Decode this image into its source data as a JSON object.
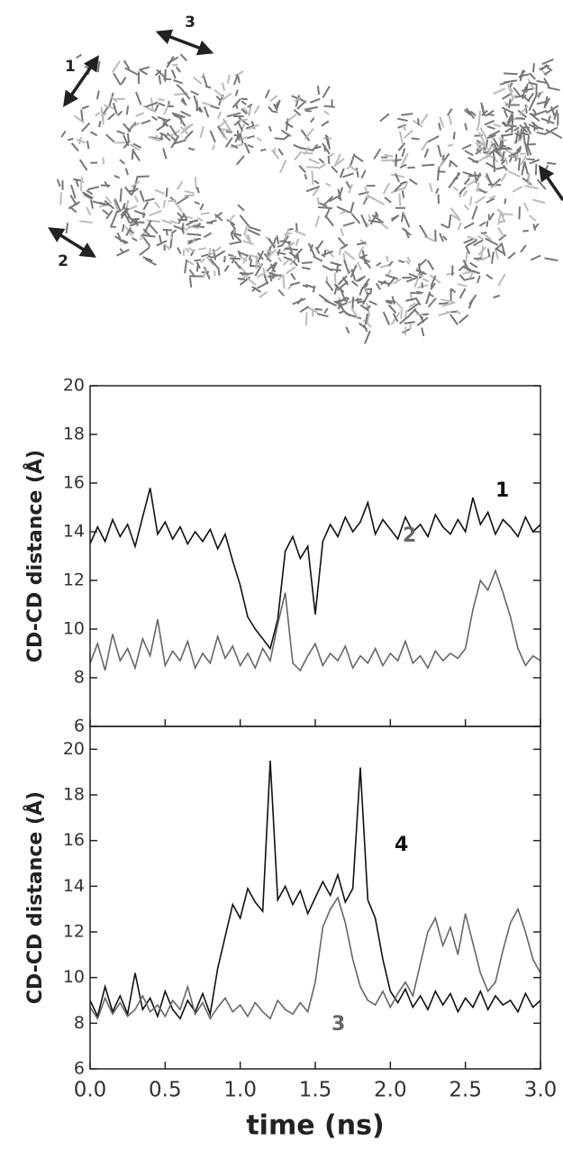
{
  "molecule_labels": [
    "1",
    "2",
    "3"
  ],
  "chart_data": [
    {
      "type": "line",
      "ylabel": "CD-CD distance (Å)",
      "x": [
        0,
        0.05,
        0.1,
        0.15,
        0.2,
        0.25,
        0.3,
        0.35,
        0.4,
        0.45,
        0.5,
        0.55,
        0.6,
        0.65,
        0.7,
        0.75,
        0.8,
        0.85,
        0.9,
        0.95,
        1.0,
        1.05,
        1.1,
        1.15,
        1.2,
        1.25,
        1.3,
        1.35,
        1.4,
        1.45,
        1.5,
        1.55,
        1.6,
        1.65,
        1.7,
        1.75,
        1.8,
        1.85,
        1.9,
        1.95,
        2.0,
        2.05,
        2.1,
        2.15,
        2.2,
        2.25,
        2.3,
        2.35,
        2.4,
        2.45,
        2.5,
        2.55,
        2.6,
        2.65,
        2.7,
        2.75,
        2.8,
        2.85,
        2.9,
        2.95,
        3.0
      ],
      "series": [
        {
          "name": "1",
          "color": "#111111",
          "values": [
            13.5,
            14.2,
            13.6,
            14.5,
            13.8,
            14.3,
            13.4,
            14.6,
            15.8,
            13.9,
            14.4,
            13.7,
            14.2,
            13.5,
            14.0,
            13.6,
            14.1,
            13.3,
            13.9,
            12.8,
            11.8,
            10.5,
            10.0,
            9.6,
            9.2,
            10.4,
            13.2,
            13.8,
            12.9,
            13.4,
            10.6,
            13.6,
            14.3,
            13.8,
            14.6,
            14.0,
            14.4,
            15.2,
            13.9,
            14.5,
            14.1,
            13.7,
            14.6,
            14.0,
            14.3,
            13.8,
            14.7,
            14.2,
            13.9,
            14.5,
            14.0,
            15.4,
            14.3,
            14.8,
            13.9,
            14.5,
            14.2,
            13.8,
            14.6,
            14.0,
            14.3
          ]
        },
        {
          "name": "2",
          "color": "#666666",
          "values": [
            8.6,
            9.4,
            8.3,
            9.8,
            8.7,
            9.2,
            8.4,
            9.6,
            8.9,
            10.4,
            8.5,
            9.1,
            8.7,
            9.5,
            8.4,
            9.0,
            8.6,
            9.7,
            8.8,
            9.3,
            8.5,
            9.0,
            8.4,
            9.2,
            8.7,
            10.2,
            11.5,
            8.6,
            8.3,
            8.9,
            9.4,
            8.5,
            9.0,
            8.7,
            9.3,
            8.4,
            8.9,
            8.6,
            9.2,
            8.5,
            9.0,
            8.7,
            9.5,
            8.6,
            8.9,
            8.4,
            9.1,
            8.7,
            9.0,
            8.8,
            9.2,
            10.8,
            12.0,
            11.6,
            12.4,
            11.5,
            10.5,
            9.2,
            8.5,
            8.9,
            8.7
          ]
        }
      ],
      "xlim": [
        0,
        3
      ],
      "xticks": [
        0,
        0.5,
        1,
        1.5,
        2,
        2.5,
        3
      ],
      "ylim": [
        6,
        20
      ],
      "yticks": [
        6,
        8,
        10,
        12,
        14,
        16,
        18,
        20
      ]
    },
    {
      "type": "line",
      "ylabel": "CD-CD distance (Å)",
      "xlabel": "time (ns)",
      "x": [
        0,
        0.05,
        0.1,
        0.15,
        0.2,
        0.25,
        0.3,
        0.35,
        0.4,
        0.45,
        0.5,
        0.55,
        0.6,
        0.65,
        0.7,
        0.75,
        0.8,
        0.85,
        0.9,
        0.95,
        1.0,
        1.05,
        1.1,
        1.15,
        1.2,
        1.25,
        1.3,
        1.35,
        1.4,
        1.45,
        1.5,
        1.55,
        1.6,
        1.65,
        1.7,
        1.75,
        1.8,
        1.85,
        1.9,
        1.95,
        2.0,
        2.05,
        2.1,
        2.15,
        2.2,
        2.25,
        2.3,
        2.35,
        2.4,
        2.45,
        2.5,
        2.55,
        2.6,
        2.65,
        2.7,
        2.75,
        2.8,
        2.85,
        2.9,
        2.95,
        3.0
      ],
      "series": [
        {
          "name": "4",
          "color": "#111111",
          "values": [
            9.0,
            8.3,
            9.6,
            8.5,
            9.2,
            8.4,
            10.2,
            8.6,
            9.1,
            8.3,
            9.4,
            8.6,
            8.2,
            9.0,
            8.5,
            9.3,
            8.4,
            10.4,
            11.8,
            13.2,
            12.6,
            13.9,
            13.3,
            12.9,
            19.5,
            13.4,
            14.0,
            13.2,
            13.8,
            12.8,
            13.5,
            14.2,
            13.6,
            14.5,
            13.3,
            13.9,
            19.2,
            13.4,
            12.6,
            10.8,
            9.4,
            8.9,
            9.5,
            8.7,
            9.2,
            8.6,
            9.4,
            8.8,
            9.3,
            8.5,
            9.1,
            8.7,
            9.4,
            8.6,
            9.2,
            8.8,
            9.0,
            8.5,
            9.3,
            8.7,
            9.0
          ]
        },
        {
          "name": "3",
          "color": "#666666",
          "values": [
            8.7,
            8.2,
            9.1,
            8.4,
            8.9,
            8.3,
            8.6,
            9.2,
            8.5,
            8.8,
            8.3,
            9.0,
            8.6,
            9.6,
            8.4,
            8.9,
            8.2,
            8.7,
            9.1,
            8.5,
            8.8,
            8.3,
            8.9,
            8.5,
            8.2,
            9.0,
            8.6,
            8.4,
            8.9,
            8.5,
            9.8,
            12.2,
            13.0,
            13.5,
            12.4,
            10.8,
            9.6,
            9.0,
            8.8,
            9.4,
            8.7,
            9.3,
            9.8,
            9.2,
            10.6,
            12.0,
            12.6,
            11.4,
            12.2,
            11.0,
            12.8,
            11.5,
            10.2,
            9.4,
            9.8,
            11.2,
            12.4,
            13.0,
            12.0,
            10.8,
            10.2
          ]
        }
      ],
      "xlim": [
        0,
        3
      ],
      "xticks": [
        {
          "value": 0,
          "label": "0.0"
        },
        {
          "value": 0.5,
          "label": "0.5"
        },
        {
          "value": 1,
          "label": "1.0"
        },
        {
          "value": 1.5,
          "label": "1.5"
        },
        {
          "value": 2,
          "label": "2.0"
        },
        {
          "value": 2.5,
          "label": "2.5"
        },
        {
          "value": 3,
          "label": "3.0"
        }
      ],
      "ylim": [
        6,
        21
      ],
      "yticks": [
        6,
        8,
        10,
        12,
        14,
        16,
        18,
        20
      ]
    }
  ]
}
